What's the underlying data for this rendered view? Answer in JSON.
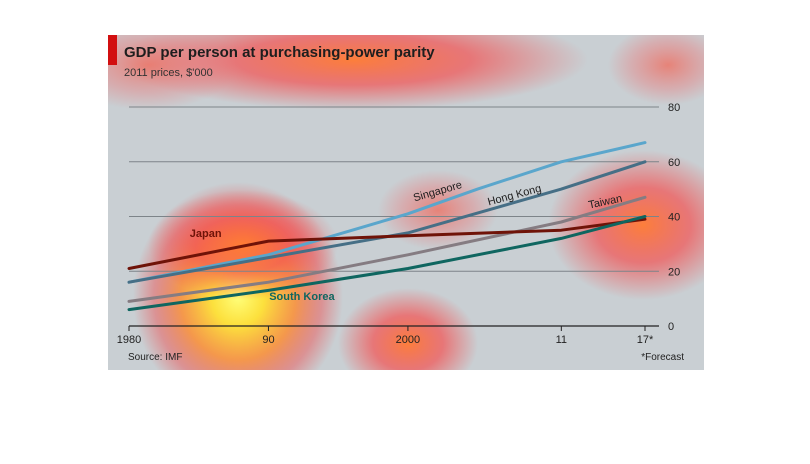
{
  "title": "GDP per person at purchasing-power parity",
  "subtitle": "2011 prices, $'000",
  "source": "Source: IMF",
  "note": "*Forecast",
  "colors": {
    "Singapore": "#5aa6cc",
    "Hong Kong": "#466f86",
    "Taiwan": "#857c82",
    "Japan": "#6f1308",
    "South Korea": "#0f6660",
    "gridline": "#7d8489"
  },
  "chart_data": {
    "type": "line",
    "title": "GDP per person at purchasing-power parity",
    "subtitle": "2011 prices, $'000",
    "x_ticks": [
      {
        "value": 1980,
        "label": "1980"
      },
      {
        "value": 1990,
        "label": "90"
      },
      {
        "value": 2000,
        "label": "2000"
      },
      {
        "value": 2011,
        "label": "11"
      },
      {
        "value": 2017,
        "label": "17*"
      }
    ],
    "xlim": [
      1980,
      2017
    ],
    "y_ticks": [
      0,
      20,
      40,
      60,
      80
    ],
    "ylim": [
      0,
      80
    ],
    "grid": true,
    "y_axis_side": "right",
    "series": [
      {
        "name": "Singapore",
        "x": [
          1980,
          1990,
          2000,
          2005,
          2011,
          2017
        ],
        "y": [
          16,
          26,
          41,
          50,
          60,
          67
        ]
      },
      {
        "name": "Hong Kong",
        "x": [
          1980,
          1990,
          2000,
          2011,
          2017
        ],
        "y": [
          16,
          25,
          34,
          50,
          60
        ]
      },
      {
        "name": "Taiwan",
        "x": [
          1980,
          1990,
          2000,
          2011,
          2017
        ],
        "y": [
          9,
          16,
          26,
          38,
          47
        ]
      },
      {
        "name": "Japan",
        "x": [
          1980,
          1990,
          2000,
          2011,
          2017
        ],
        "y": [
          21,
          31,
          33,
          35,
          39
        ]
      },
      {
        "name": "South Korea",
        "x": [
          1980,
          1990,
          2000,
          2011,
          2017
        ],
        "y": [
          6,
          13,
          21,
          32,
          40
        ]
      }
    ],
    "series_labels": [
      {
        "series": "Singapore",
        "text": "Singapore",
        "x": 2002.2,
        "y": 48,
        "rotate": -16,
        "bold": false
      },
      {
        "series": "Hong Kong",
        "text": "Hong Kong",
        "x": 2007.7,
        "y": 46.6,
        "rotate": -15,
        "bold": false
      },
      {
        "series": "Taiwan",
        "text": "Taiwan",
        "x": 2014.2,
        "y": 44.2,
        "rotate": -12,
        "bold": false
      },
      {
        "series": "Japan",
        "text": "Japan",
        "x": 1985.5,
        "y": 32.5,
        "rotate": 0,
        "bold": true
      },
      {
        "series": "South Korea",
        "text": "South Korea",
        "x": 1992.4,
        "y": 9.5,
        "rotate": 0,
        "bold": true
      }
    ]
  }
}
